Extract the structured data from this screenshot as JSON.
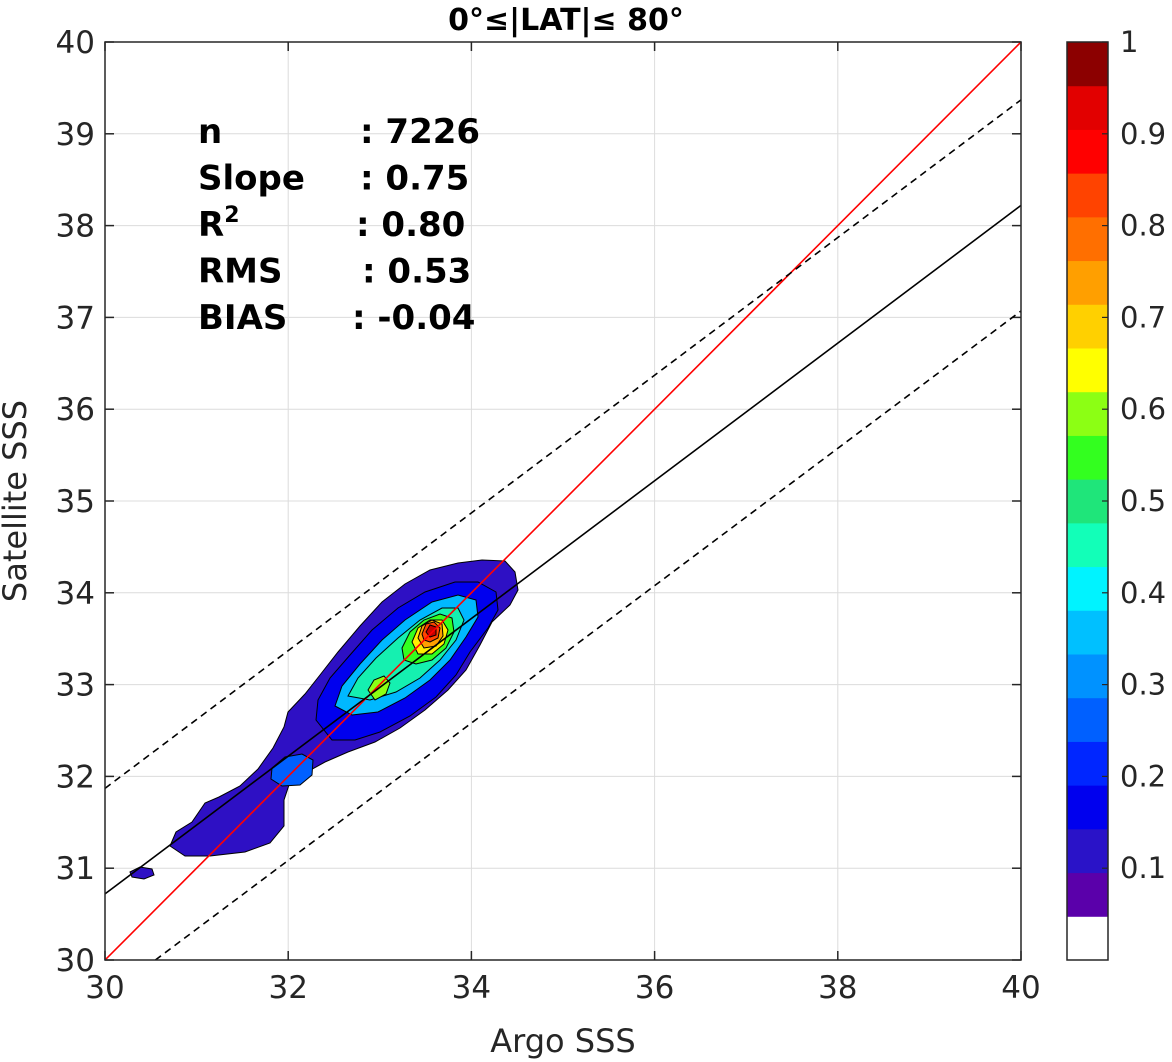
{
  "chart_data": {
    "type": "contour",
    "title": "0°≤|LAT|≤ 80°",
    "xlabel": "Argo SSS",
    "ylabel": "Satellite SSS",
    "xlim": [
      30,
      40
    ],
    "ylim": [
      30,
      40
    ],
    "xticks": [
      "30",
      "32",
      "34",
      "36",
      "38",
      "40"
    ],
    "yticks": [
      "30",
      "31",
      "32",
      "33",
      "34",
      "35",
      "36",
      "37",
      "38",
      "39",
      "40"
    ],
    "grid": true,
    "stats": [
      {
        "label": "n",
        "value": ": 7226"
      },
      {
        "label": "Slope",
        "value": ": 0.75"
      },
      {
        "label": "R",
        "sup": "2",
        "value": ": 0.80"
      },
      {
        "label": "RMS",
        "value": ": 0.53"
      },
      {
        "label": "BIAS",
        "value": ": -0.04"
      }
    ],
    "lines": [
      {
        "name": "one-to-one",
        "color": "#ff0000",
        "style": "solid",
        "points": [
          [
            30,
            30
          ],
          [
            40,
            40
          ]
        ]
      },
      {
        "name": "regression",
        "color": "#000000",
        "style": "solid",
        "points": [
          [
            30,
            30.72
          ],
          [
            40,
            38.22
          ]
        ]
      },
      {
        "name": "upper-bound",
        "color": "#000000",
        "style": "dashed",
        "points": [
          [
            30,
            31.87
          ],
          [
            40,
            39.37
          ]
        ]
      },
      {
        "name": "lower-bound",
        "color": "#000000",
        "style": "dashed",
        "points": [
          [
            30.55,
            30
          ],
          [
            40,
            37.07
          ]
        ]
      }
    ],
    "density_peak": {
      "x": 33.55,
      "y": 33.55,
      "value": 1.0
    },
    "secondary_peaks": [
      {
        "x": 32.95,
        "y": 32.92,
        "value": 0.55
      },
      {
        "x": 32.05,
        "y": 31.95,
        "value": 0.25
      }
    ],
    "colorbar": {
      "min": 0,
      "max": 1,
      "ticks": [
        "0.1",
        "0.2",
        "0.3",
        "0.4",
        "0.5",
        "0.6",
        "0.7",
        "0.8",
        "0.9",
        "1"
      ],
      "tick_values": [
        0.1,
        0.2,
        0.3,
        0.4,
        0.5,
        0.6,
        0.7,
        0.8,
        0.9,
        1.0
      ],
      "levels": 20,
      "colors": [
        "#ffffff",
        "#5a00aa",
        "#2a13c8",
        "#0000ee",
        "#0026ff",
        "#0060ff",
        "#0092ff",
        "#00c0ff",
        "#00f3ff",
        "#12ffb8",
        "#1fe57a",
        "#33ff1f",
        "#8cff14",
        "#ffff00",
        "#ffd000",
        "#ff9f00",
        "#ff6f00",
        "#ff4300",
        "#ff0000",
        "#e20000",
        "#8c0000"
      ]
    }
  }
}
